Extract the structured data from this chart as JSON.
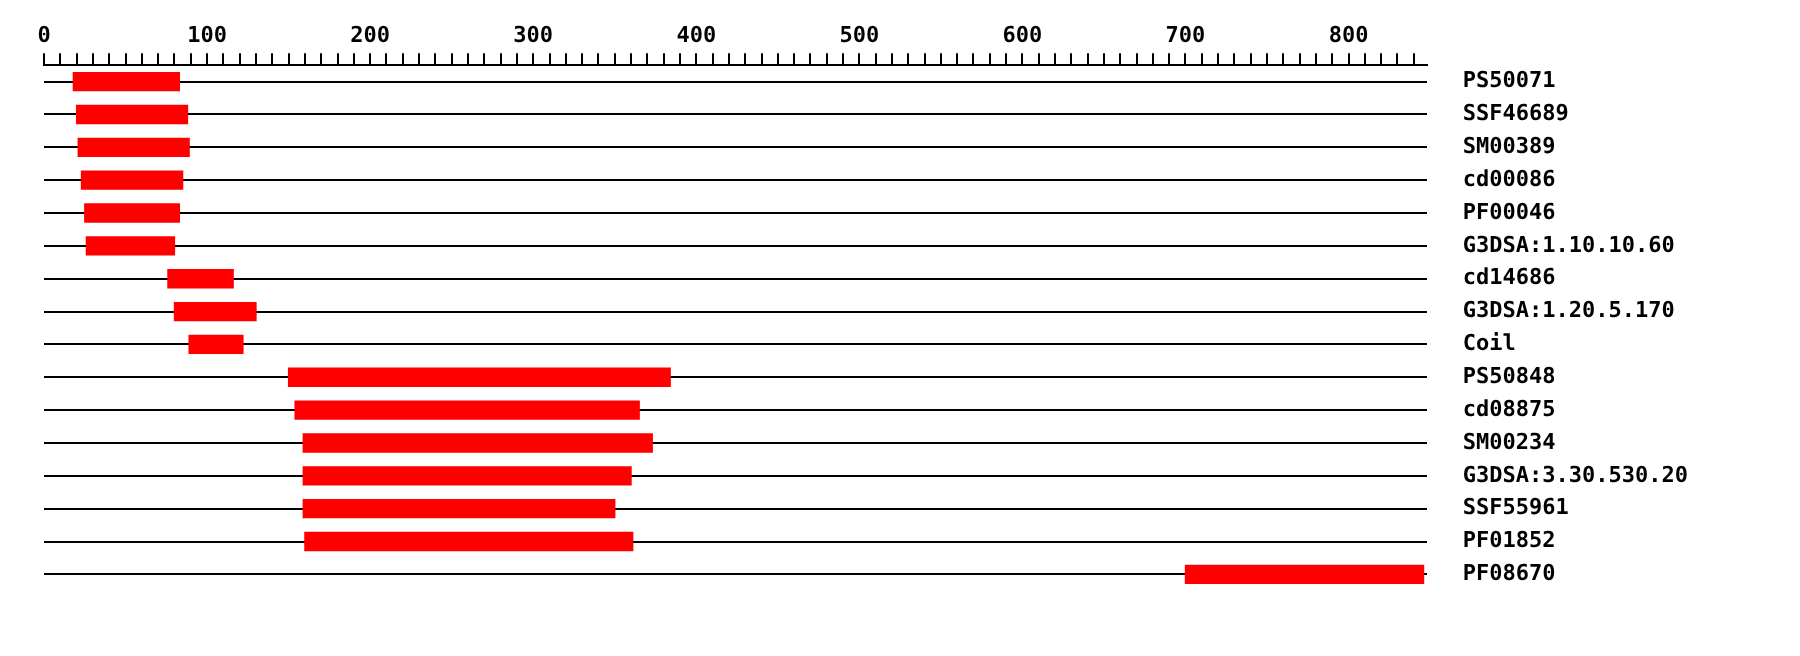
{
  "chart_data": {
    "type": "bar",
    "orientation": "horizontal",
    "categories": [
      "PS50071",
      "SSF46689",
      "SM00389",
      "cd00086",
      "PF00046",
      "G3DSA:1.10.10.60",
      "cd14686",
      "G3DSA:1.20.5.170",
      "Coil",
      "PS50848",
      "cd08875",
      "SM00234",
      "G3DSA:3.30.530.20",
      "SSF55961",
      "PF01852",
      "PF08670"
    ],
    "base": [
      18,
      20,
      21,
      23,
      25,
      26,
      76,
      80,
      89,
      150,
      154,
      159,
      159,
      159,
      160,
      700
    ],
    "values": [
      65,
      68,
      68,
      62,
      58,
      54,
      40,
      50,
      33,
      234,
      211,
      214,
      201,
      191,
      201,
      146
    ],
    "color": "#ff0000",
    "xlim": [
      0,
      848
    ],
    "xticks": [
      0,
      {
        "value": 10,
        "label": null
      },
      {
        "value": 20,
        "label": null
      },
      {
        "value": 30,
        "label": null
      },
      {
        "value": 40,
        "label": null
      },
      {
        "value": 50,
        "label": null
      },
      {
        "value": 60,
        "label": null
      },
      {
        "value": 70,
        "label": null
      },
      {
        "value": 80,
        "label": null
      },
      {
        "value": 90,
        "label": null
      },
      100,
      {
        "value": 110,
        "label": null
      },
      {
        "value": 120,
        "label": null
      },
      {
        "value": 130,
        "label": null
      },
      {
        "value": 140,
        "label": null
      },
      {
        "value": 150,
        "label": null
      },
      {
        "value": 160,
        "label": null
      },
      {
        "value": 170,
        "label": null
      },
      {
        "value": 180,
        "label": null
      },
      {
        "value": 190,
        "label": null
      },
      200,
      {
        "value": 210,
        "label": null
      },
      {
        "value": 220,
        "label": null
      },
      {
        "value": 230,
        "label": null
      },
      {
        "value": 240,
        "label": null
      },
      {
        "value": 250,
        "label": null
      },
      {
        "value": 260,
        "label": null
      },
      {
        "value": 270,
        "label": null
      },
      {
        "value": 280,
        "label": null
      },
      {
        "value": 290,
        "label": null
      },
      300,
      {
        "value": 310,
        "label": null
      },
      {
        "value": 320,
        "label": null
      },
      {
        "value": 330,
        "label": null
      },
      {
        "value": 340,
        "label": null
      },
      {
        "value": 350,
        "label": null
      },
      {
        "value": 360,
        "label": null
      },
      {
        "value": 370,
        "label": null
      },
      {
        "value": 380,
        "label": null
      },
      {
        "value": 390,
        "label": null
      },
      400,
      {
        "value": 410,
        "label": null
      },
      {
        "value": 420,
        "label": null
      },
      {
        "value": 430,
        "label": null
      },
      {
        "value": 440,
        "label": null
      },
      {
        "value": 450,
        "label": null
      },
      {
        "value": 460,
        "label": null
      },
      {
        "value": 470,
        "label": null
      },
      {
        "value": 480,
        "label": null
      },
      {
        "value": 490,
        "label": null
      },
      500,
      {
        "value": 510,
        "label": null
      },
      {
        "value": 520,
        "label": null
      },
      {
        "value": 530,
        "label": null
      },
      {
        "value": 540,
        "label": null
      },
      {
        "value": 550,
        "label": null
      },
      {
        "value": 560,
        "label": null
      },
      {
        "value": 570,
        "label": null
      },
      {
        "value": 580,
        "label": null
      },
      {
        "value": 590,
        "label": null
      },
      600,
      {
        "value": 610,
        "label": null
      },
      {
        "value": 620,
        "label": null
      },
      {
        "value": 630,
        "label": null
      },
      {
        "value": 640,
        "label": null
      },
      {
        "value": 650,
        "label": null
      },
      {
        "value": 660,
        "label": null
      },
      {
        "value": 670,
        "label": null
      },
      {
        "value": 680,
        "label": null
      },
      {
        "value": 690,
        "label": null
      },
      700,
      {
        "value": 710,
        "label": null
      },
      {
        "value": 720,
        "label": null
      },
      {
        "value": 730,
        "label": null
      },
      {
        "value": 740,
        "label": null
      },
      {
        "value": 750,
        "label": null
      },
      {
        "value": 760,
        "label": null
      },
      {
        "value": 770,
        "label": null
      },
      {
        "value": 780,
        "label": null
      },
      {
        "value": 790,
        "label": null
      },
      800,
      {
        "value": 810,
        "label": null
      },
      {
        "value": 820,
        "label": null
      },
      {
        "value": 830,
        "label": null
      },
      {
        "value": 840,
        "label": null
      }
    ],
    "grid": "y"
  }
}
